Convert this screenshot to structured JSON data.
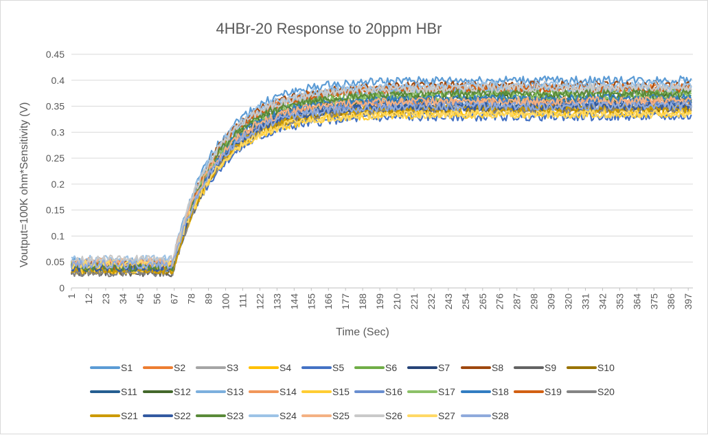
{
  "chart_data": {
    "type": "line",
    "title": "4HBr-20 Response to 20ppm HBr",
    "xlabel": "Time (Sec)",
    "ylabel": "Voutput=100K ohm*Sensitivity (V)",
    "ylim": [
      0,
      0.45
    ],
    "yticks": [
      "0",
      "0.05",
      "0.1",
      "0.15",
      "0.2",
      "0.25",
      "0.3",
      "0.35",
      "0.4",
      "0.45"
    ],
    "xlim": [
      1,
      400
    ],
    "xticks": [
      1,
      12,
      23,
      34,
      45,
      56,
      67,
      78,
      89,
      100,
      111,
      122,
      133,
      144,
      155,
      166,
      177,
      188,
      199,
      210,
      221,
      232,
      243,
      254,
      265,
      276,
      287,
      298,
      309,
      320,
      331,
      342,
      353,
      364,
      375,
      386,
      397
    ],
    "grid": "horizontal",
    "legend_position": "bottom",
    "response_onset_sec": 66,
    "time_constant_sec": 28,
    "series": [
      {
        "name": "S1",
        "color": "#5b9bd5",
        "baseline": 0.05,
        "plateau": 0.4
      },
      {
        "name": "S2",
        "color": "#ed7d31",
        "baseline": 0.045,
        "plateau": 0.385
      },
      {
        "name": "S3",
        "color": "#a5a5a5",
        "baseline": 0.045,
        "plateau": 0.38
      },
      {
        "name": "S4",
        "color": "#ffc000",
        "baseline": 0.035,
        "plateau": 0.34
      },
      {
        "name": "S5",
        "color": "#4472c4",
        "baseline": 0.035,
        "plateau": 0.33
      },
      {
        "name": "S6",
        "color": "#70ad47",
        "baseline": 0.045,
        "plateau": 0.375
      },
      {
        "name": "S7",
        "color": "#264478",
        "baseline": 0.04,
        "plateau": 0.36
      },
      {
        "name": "S8",
        "color": "#9e480e",
        "baseline": 0.045,
        "plateau": 0.39
      },
      {
        "name": "S9",
        "color": "#636363",
        "baseline": 0.03,
        "plateau": 0.345
      },
      {
        "name": "S10",
        "color": "#997300",
        "baseline": 0.035,
        "plateau": 0.345
      },
      {
        "name": "S11",
        "color": "#255e91",
        "baseline": 0.04,
        "plateau": 0.355
      },
      {
        "name": "S12",
        "color": "#43682b",
        "baseline": 0.04,
        "plateau": 0.365
      },
      {
        "name": "S13",
        "color": "#7cafdd",
        "baseline": 0.05,
        "plateau": 0.385
      },
      {
        "name": "S14",
        "color": "#f1975a",
        "baseline": 0.045,
        "plateau": 0.36
      },
      {
        "name": "S15",
        "color": "#ffcd33",
        "baseline": 0.035,
        "plateau": 0.335
      },
      {
        "name": "S16",
        "color": "#698ed0",
        "baseline": 0.04,
        "plateau": 0.355
      },
      {
        "name": "S17",
        "color": "#8cc168",
        "baseline": 0.045,
        "plateau": 0.37
      },
      {
        "name": "S18",
        "color": "#327dc2",
        "baseline": 0.04,
        "plateau": 0.365
      },
      {
        "name": "S19",
        "color": "#d26012",
        "baseline": 0.045,
        "plateau": 0.385
      },
      {
        "name": "S20",
        "color": "#848484",
        "baseline": 0.03,
        "plateau": 0.345
      },
      {
        "name": "S21",
        "color": "#cc9a00",
        "baseline": 0.035,
        "plateau": 0.345
      },
      {
        "name": "S22",
        "color": "#335aa1",
        "baseline": 0.04,
        "plateau": 0.35
      },
      {
        "name": "S23",
        "color": "#5a8a39",
        "baseline": 0.04,
        "plateau": 0.375
      },
      {
        "name": "S24",
        "color": "#9dc3e6",
        "baseline": 0.055,
        "plateau": 0.39
      },
      {
        "name": "S25",
        "color": "#f4b183",
        "baseline": 0.05,
        "plateau": 0.36
      },
      {
        "name": "S26",
        "color": "#c9c9c9",
        "baseline": 0.055,
        "plateau": 0.385
      },
      {
        "name": "S27",
        "color": "#ffd966",
        "baseline": 0.045,
        "plateau": 0.335
      },
      {
        "name": "S28",
        "color": "#8faadc",
        "baseline": 0.045,
        "plateau": 0.35
      }
    ]
  }
}
